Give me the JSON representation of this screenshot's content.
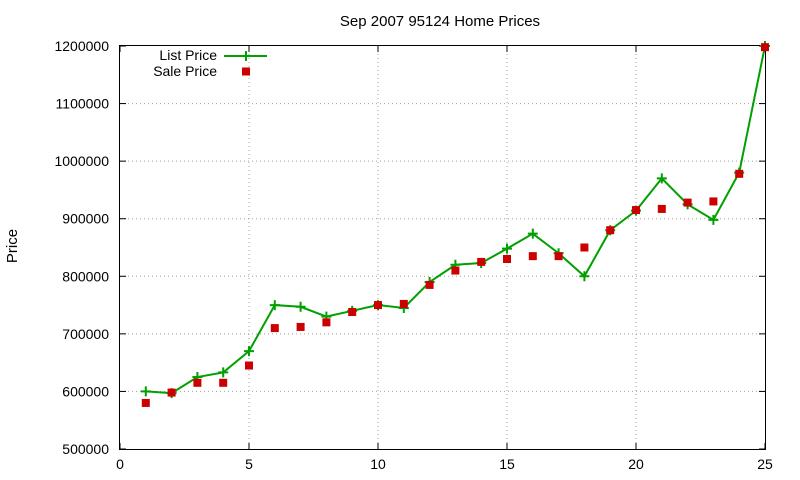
{
  "chart_data": {
    "type": "line",
    "title": "Sep 2007 95124 Home Prices",
    "xlabel": "",
    "ylabel": "Price",
    "xlim": [
      0,
      25
    ],
    "ylim": [
      500000,
      1200000
    ],
    "xticks": [
      0,
      5,
      10,
      15,
      20,
      25
    ],
    "yticks": [
      500000,
      600000,
      700000,
      800000,
      900000,
      1000000,
      1100000,
      1200000
    ],
    "grid": true,
    "legend_position": "top-left",
    "series": [
      {
        "name": "List Price",
        "style": "line+cross",
        "color": "#00a000",
        "x": [
          1,
          2,
          3,
          4,
          5,
          6,
          7,
          8,
          9,
          10,
          11,
          12,
          13,
          14,
          15,
          16,
          17,
          18,
          19,
          20,
          21,
          22,
          23,
          24,
          25
        ],
        "y": [
          600000,
          597000,
          625000,
          633000,
          670000,
          750000,
          747000,
          730000,
          740000,
          750000,
          745000,
          790000,
          820000,
          823000,
          848000,
          874000,
          840000,
          800000,
          880000,
          914000,
          970000,
          925000,
          898000,
          980000,
          1200000
        ]
      },
      {
        "name": "Sale Price",
        "style": "square",
        "color": "#cc0000",
        "x": [
          1,
          2,
          3,
          4,
          5,
          6,
          7,
          8,
          9,
          10,
          11,
          12,
          13,
          14,
          15,
          16,
          17,
          18,
          19,
          20,
          21,
          22,
          23,
          24,
          25
        ],
        "y": [
          580000,
          598000,
          615000,
          615000,
          645000,
          710000,
          712000,
          720000,
          738000,
          750000,
          752000,
          785000,
          810000,
          825000,
          830000,
          835000,
          835000,
          850000,
          880000,
          915000,
          917000,
          928000,
          930000,
          978000,
          1198000
        ]
      }
    ]
  }
}
